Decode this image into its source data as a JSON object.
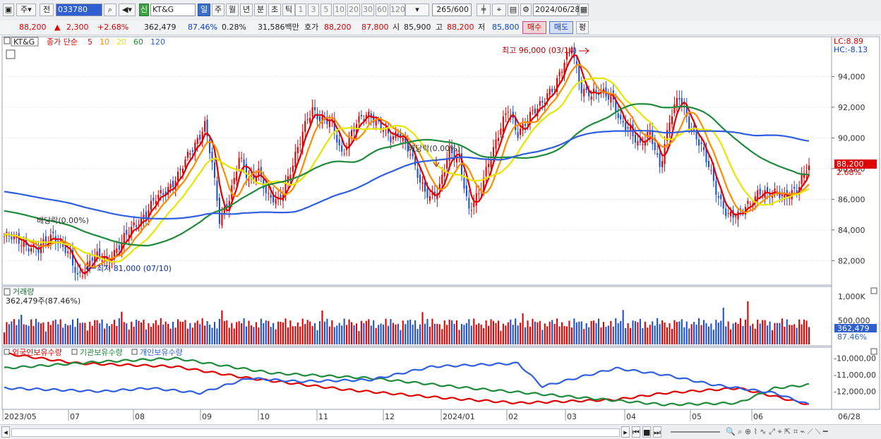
{
  "toolbar": {
    "period_select": "주",
    "prev_label": "전",
    "code": "033780",
    "market_badge": "신",
    "stock_name": "KT&G",
    "periods": [
      "일",
      "주",
      "월",
      "년",
      "분",
      "초",
      "틱"
    ],
    "active_period": "일",
    "minute_options": [
      "1",
      "3",
      "5",
      "10",
      "20",
      "30",
      "60",
      "120"
    ],
    "count": "265",
    "count_total": "/600",
    "date": "2024/06/28"
  },
  "quote": {
    "price": "88,200",
    "arrow": "▲",
    "change": "2,300",
    "change_pct": "+2.68%",
    "volume": "362,479",
    "volume_pct": "87.46%",
    "turnover_pct": "0.28%",
    "amount": "31,586백만",
    "ask_label": "호가",
    "ask": "88,200",
    "bid": "87,800",
    "open_label": "시",
    "open": "85,900",
    "high_label": "고",
    "high": "88,200",
    "low_label": "저",
    "low": "85,800",
    "buy_btn": "매수",
    "sell_btn": "매도",
    "eval_btn": "평"
  },
  "price_panel": {
    "title": "KT&G",
    "ma_label": "종가 단순",
    "ma_periods": [
      "5",
      "10",
      "20",
      "60",
      "120"
    ],
    "ma_colors": [
      "#e00000",
      "#ff8c00",
      "#e6e600",
      "#1e8a3a",
      "#2f5fe0"
    ],
    "lc": "LC:8.89",
    "hc": "HC:-8.13",
    "high_annotation": "최고 96,000 (03/14)",
    "low_annotation": "최저 81,000 (07/10)",
    "dividend1": "배당락(0.00%)",
    "dividend2": "배당락(0.00%)",
    "y_ticks": [
      "94,000",
      "92,000",
      "90,000",
      "88,000",
      "86,000",
      "84,000",
      "82,000"
    ],
    "last_price_tag": "88,200",
    "last_pct_tag": "2.68%"
  },
  "volume_panel": {
    "title": "거래량",
    "readout": "362,479주(87.46%)",
    "y_ticks": [
      "1,000K",
      "500,000"
    ],
    "last_tag": "362,479",
    "last_pct": "87.46%"
  },
  "holding_panel": {
    "legend": [
      "외국인보유수량",
      "기관보유수량",
      "개인보유수량"
    ],
    "legend_colors": [
      "#e00000",
      "#1e8a3a",
      "#2f5fe0"
    ],
    "y_ticks": [
      "-10,000,00",
      "-11,000,00",
      "-12,000,00"
    ]
  },
  "x_axis": [
    "2023/05",
    "07",
    "08",
    "09",
    "10",
    "11",
    "12",
    "2024/01",
    "02",
    "03",
    "04",
    "05",
    "06",
    "06/28"
  ],
  "chart_data": {
    "type": "line",
    "ma_periods": [
      5,
      10,
      20,
      60,
      120
    ],
    "price_range": [
      80500,
      96500
    ],
    "close_anchors": [
      [
        0,
        83600
      ],
      [
        8,
        83200
      ],
      [
        14,
        82600
      ],
      [
        20,
        83800
      ],
      [
        26,
        82400
      ],
      [
        30,
        81000
      ],
      [
        36,
        82200
      ],
      [
        42,
        82000
      ],
      [
        48,
        83200
      ],
      [
        54,
        84400
      ],
      [
        60,
        85600
      ],
      [
        66,
        86600
      ],
      [
        72,
        87800
      ],
      [
        78,
        89600
      ],
      [
        82,
        91000
      ],
      [
        85,
        88200
      ],
      [
        88,
        84600
      ],
      [
        92,
        86200
      ],
      [
        96,
        88600
      ],
      [
        100,
        87200
      ],
      [
        104,
        88000
      ],
      [
        108,
        86000
      ],
      [
        112,
        85800
      ],
      [
        116,
        87500
      ],
      [
        120,
        89200
      ],
      [
        124,
        91200
      ],
      [
        126,
        92000
      ],
      [
        130,
        91200
      ],
      [
        134,
        90800
      ],
      [
        138,
        89000
      ],
      [
        142,
        90400
      ],
      [
        146,
        91200
      ],
      [
        150,
        91600
      ],
      [
        154,
        90800
      ],
      [
        158,
        89800
      ],
      [
        162,
        90400
      ],
      [
        166,
        89000
      ],
      [
        170,
        87000
      ],
      [
        174,
        86200
      ],
      [
        178,
        86800
      ],
      [
        182,
        89000
      ],
      [
        186,
        88800
      ],
      [
        190,
        85200
      ],
      [
        194,
        86200
      ],
      [
        198,
        88600
      ],
      [
        202,
        90200
      ],
      [
        206,
        91800
      ],
      [
        210,
        90400
      ],
      [
        214,
        91200
      ],
      [
        218,
        91800
      ],
      [
        222,
        93000
      ],
      [
        226,
        93600
      ],
      [
        230,
        95200
      ],
      [
        232,
        96000
      ],
      [
        236,
        93200
      ],
      [
        240,
        92600
      ],
      [
        244,
        93200
      ],
      [
        248,
        92800
      ],
      [
        252,
        90800
      ],
      [
        256,
        90600
      ],
      [
        260,
        89600
      ],
      [
        264,
        90200
      ],
      [
        268,
        88200
      ],
      [
        272,
        91200
      ],
      [
        276,
        92600
      ],
      [
        280,
        91000
      ],
      [
        284,
        89800
      ],
      [
        288,
        88000
      ],
      [
        292,
        86200
      ],
      [
        296,
        85000
      ],
      [
        300,
        84800
      ],
      [
        304,
        85800
      ],
      [
        308,
        86400
      ],
      [
        312,
        86200
      ],
      [
        316,
        86600
      ],
      [
        320,
        86200
      ],
      [
        324,
        86400
      ],
      [
        328,
        88200
      ]
    ],
    "volume_last": 362479,
    "holding_y_range": [
      -13000000,
      -9500000
    ]
  }
}
